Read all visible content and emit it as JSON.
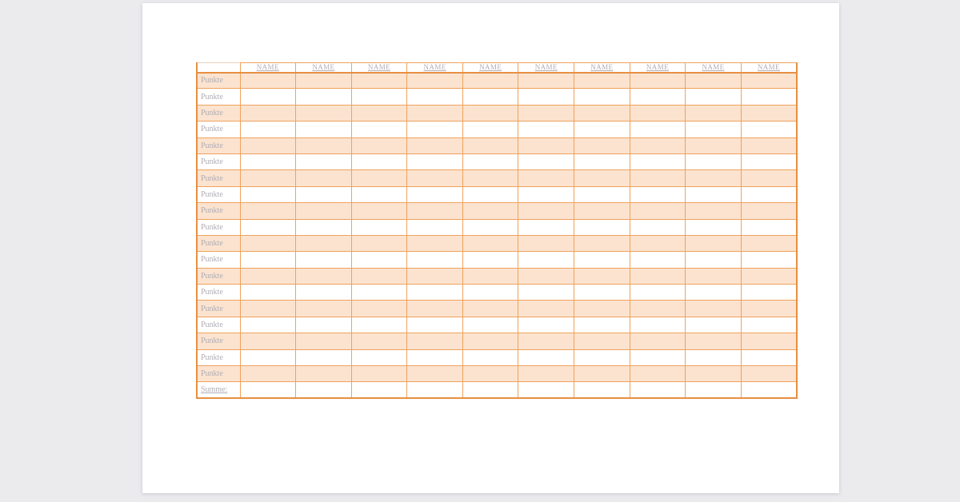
{
  "canvas": {
    "background_color": "#ebebee"
  },
  "page": {
    "background_color": "#ffffff"
  },
  "table": {
    "corner_label": "",
    "column_headers": [
      "NAME",
      "NAME",
      "NAME",
      "NAME",
      "NAME",
      "NAME",
      "NAME",
      "NAME",
      "NAME",
      "NAME"
    ],
    "rows": [
      {
        "label": "Punkte",
        "shaded": true,
        "underline": false
      },
      {
        "label": "Punkte",
        "shaded": false,
        "underline": false
      },
      {
        "label": "Punkte",
        "shaded": true,
        "underline": false
      },
      {
        "label": "Punkte",
        "shaded": false,
        "underline": false
      },
      {
        "label": "Punkte",
        "shaded": true,
        "underline": false
      },
      {
        "label": "Punkte",
        "shaded": false,
        "underline": false
      },
      {
        "label": "Punkte",
        "shaded": true,
        "underline": false
      },
      {
        "label": "Punkte",
        "shaded": false,
        "underline": false
      },
      {
        "label": "Punkte",
        "shaded": true,
        "underline": false
      },
      {
        "label": "Punkte",
        "shaded": false,
        "underline": false
      },
      {
        "label": "Punkte",
        "shaded": true,
        "underline": false
      },
      {
        "label": "Punkte",
        "shaded": false,
        "underline": false
      },
      {
        "label": "Punkte",
        "shaded": true,
        "underline": false
      },
      {
        "label": "Punkte",
        "shaded": false,
        "underline": false
      },
      {
        "label": "Punkte",
        "shaded": true,
        "underline": false
      },
      {
        "label": "Punkte",
        "shaded": false,
        "underline": false
      },
      {
        "label": "Punkte",
        "shaded": true,
        "underline": false
      },
      {
        "label": "Punkte",
        "shaded": false,
        "underline": false
      },
      {
        "label": "Punkte",
        "shaded": true,
        "underline": false
      },
      {
        "label": "Summe:",
        "shaded": false,
        "underline": true
      }
    ],
    "colors": {
      "border": "#efa25d",
      "border_strong": "#e78f42",
      "border_light": "#ecd2b8",
      "shaded_row_fill": "#fbe3cf",
      "label_text": "#b0adb5"
    }
  }
}
